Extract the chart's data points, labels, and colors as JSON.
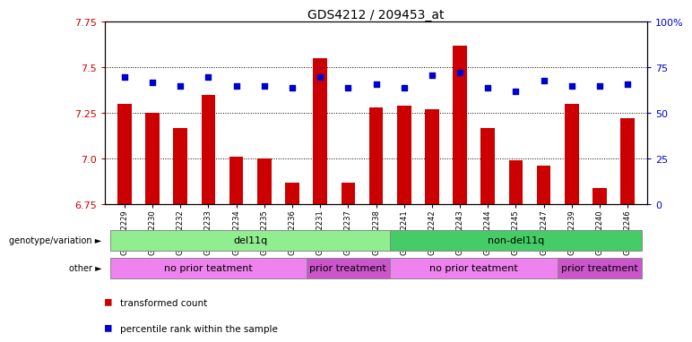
{
  "title": "GDS4212 / 209453_at",
  "samples": [
    "GSM652229",
    "GSM652230",
    "GSM652232",
    "GSM652233",
    "GSM652234",
    "GSM652235",
    "GSM652236",
    "GSM652231",
    "GSM652237",
    "GSM652238",
    "GSM652241",
    "GSM652242",
    "GSM652243",
    "GSM652244",
    "GSM652245",
    "GSM652247",
    "GSM652239",
    "GSM652240",
    "GSM652246"
  ],
  "transformed_count": [
    7.3,
    7.25,
    7.17,
    7.35,
    7.01,
    7.0,
    6.87,
    7.55,
    6.87,
    7.28,
    7.29,
    7.27,
    7.62,
    7.17,
    6.99,
    6.96,
    7.3,
    6.84,
    7.22
  ],
  "percentile_rank": [
    70,
    67,
    65,
    70,
    65,
    65,
    64,
    70,
    64,
    66,
    64,
    71,
    72,
    64,
    62,
    68,
    65,
    65,
    66
  ],
  "ylim_left": [
    6.75,
    7.75
  ],
  "ylim_right": [
    0,
    100
  ],
  "yticks_left": [
    6.75,
    7.0,
    7.25,
    7.5,
    7.75
  ],
  "yticks_right": [
    0,
    25,
    50,
    75,
    100
  ],
  "bar_color": "#cc0000",
  "dot_color": "#0000cc",
  "genotype_groups": [
    {
      "label": "del11q",
      "start": 0,
      "end": 10,
      "color": "#90ee90"
    },
    {
      "label": "non-del11q",
      "start": 10,
      "end": 19,
      "color": "#44cc66"
    }
  ],
  "other_groups": [
    {
      "label": "no prior teatment",
      "start": 0,
      "end": 7,
      "color": "#ee82ee"
    },
    {
      "label": "prior treatment",
      "start": 7,
      "end": 10,
      "color": "#cc55cc"
    },
    {
      "label": "no prior teatment",
      "start": 10,
      "end": 16,
      "color": "#ee82ee"
    },
    {
      "label": "prior treatment",
      "start": 16,
      "end": 19,
      "color": "#cc55cc"
    }
  ],
  "background_color": "#ffffff",
  "dotted_line_color": "#000000"
}
